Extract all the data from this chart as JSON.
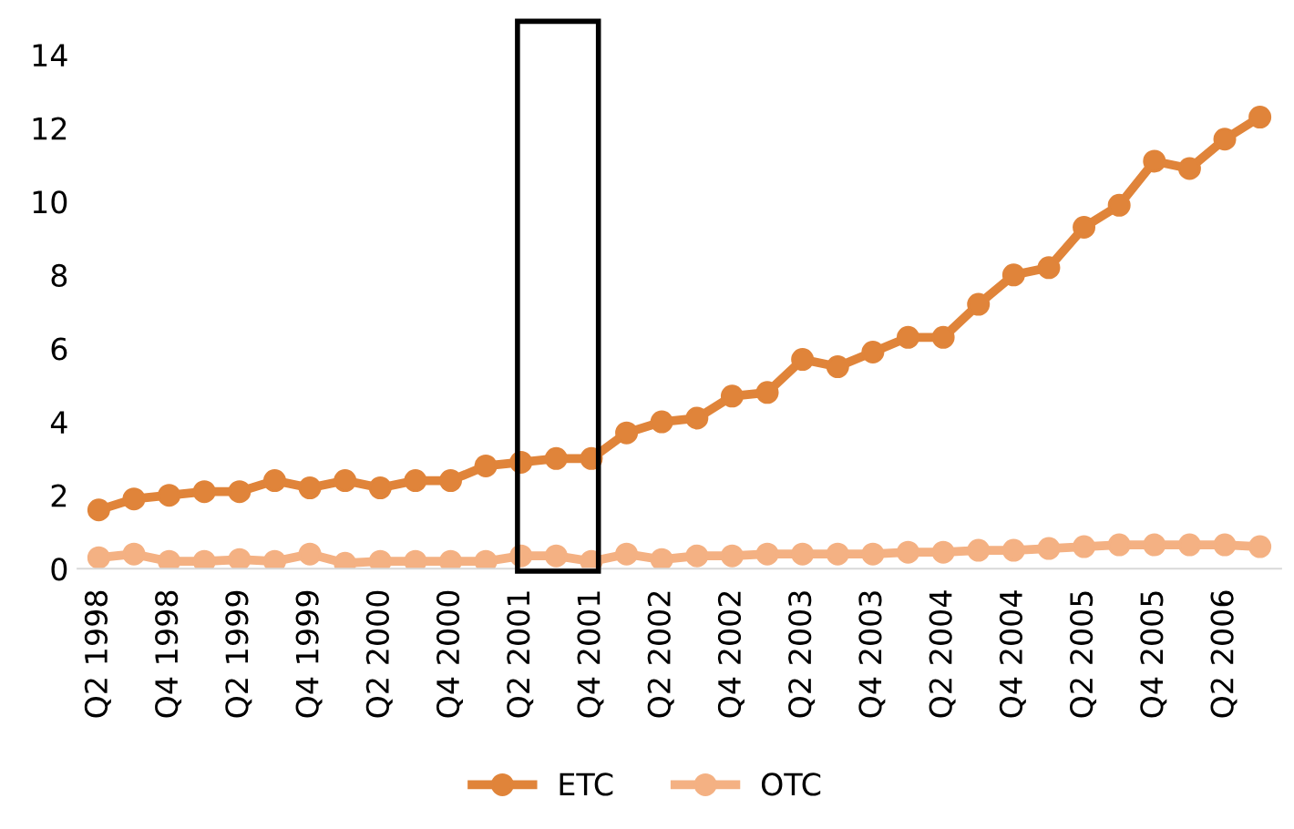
{
  "chart_data": {
    "type": "line",
    "categories": [
      "Q2 1998",
      null,
      "Q4 1998",
      null,
      "Q2 1999",
      null,
      "Q4 1999",
      null,
      "Q2 2000",
      null,
      "Q4 2000",
      null,
      "Q2 2001",
      null,
      "Q4 2001",
      null,
      "Q2 2002",
      null,
      "Q4 2002",
      null,
      "Q2 2003",
      null,
      "Q4 2003",
      null,
      "Q2 2004",
      null,
      "Q4 2004",
      null,
      "Q2 2005",
      null,
      "Q4 2005",
      null,
      "Q2 2006",
      null
    ],
    "series": [
      {
        "name": "ETC",
        "color": "#e0843a",
        "values": [
          1.6,
          1.9,
          2.0,
          2.1,
          2.1,
          2.4,
          2.2,
          2.4,
          2.2,
          2.4,
          2.4,
          2.8,
          2.9,
          3.0,
          3.0,
          3.7,
          4.0,
          4.1,
          4.7,
          4.8,
          5.7,
          5.5,
          5.9,
          6.3,
          6.3,
          7.2,
          8.0,
          8.2,
          9.3,
          9.9,
          11.1,
          10.9,
          11.7,
          12.3
        ]
      },
      {
        "name": "OTC",
        "color": "#f4b183",
        "values": [
          0.3,
          0.4,
          0.2,
          0.2,
          0.25,
          0.2,
          0.4,
          0.15,
          0.2,
          0.2,
          0.2,
          0.2,
          0.35,
          0.35,
          0.2,
          0.4,
          0.25,
          0.35,
          0.35,
          0.4,
          0.4,
          0.4,
          0.4,
          0.45,
          0.45,
          0.5,
          0.5,
          0.55,
          0.6,
          0.65,
          0.65,
          0.65,
          0.65,
          0.6
        ]
      }
    ],
    "ylim": [
      0,
      14
    ],
    "yticks": [
      0,
      2,
      4,
      6,
      8,
      10,
      12,
      14
    ],
    "grid": false,
    "legend": "bottom",
    "marker": "circle",
    "line_style": "solid"
  }
}
